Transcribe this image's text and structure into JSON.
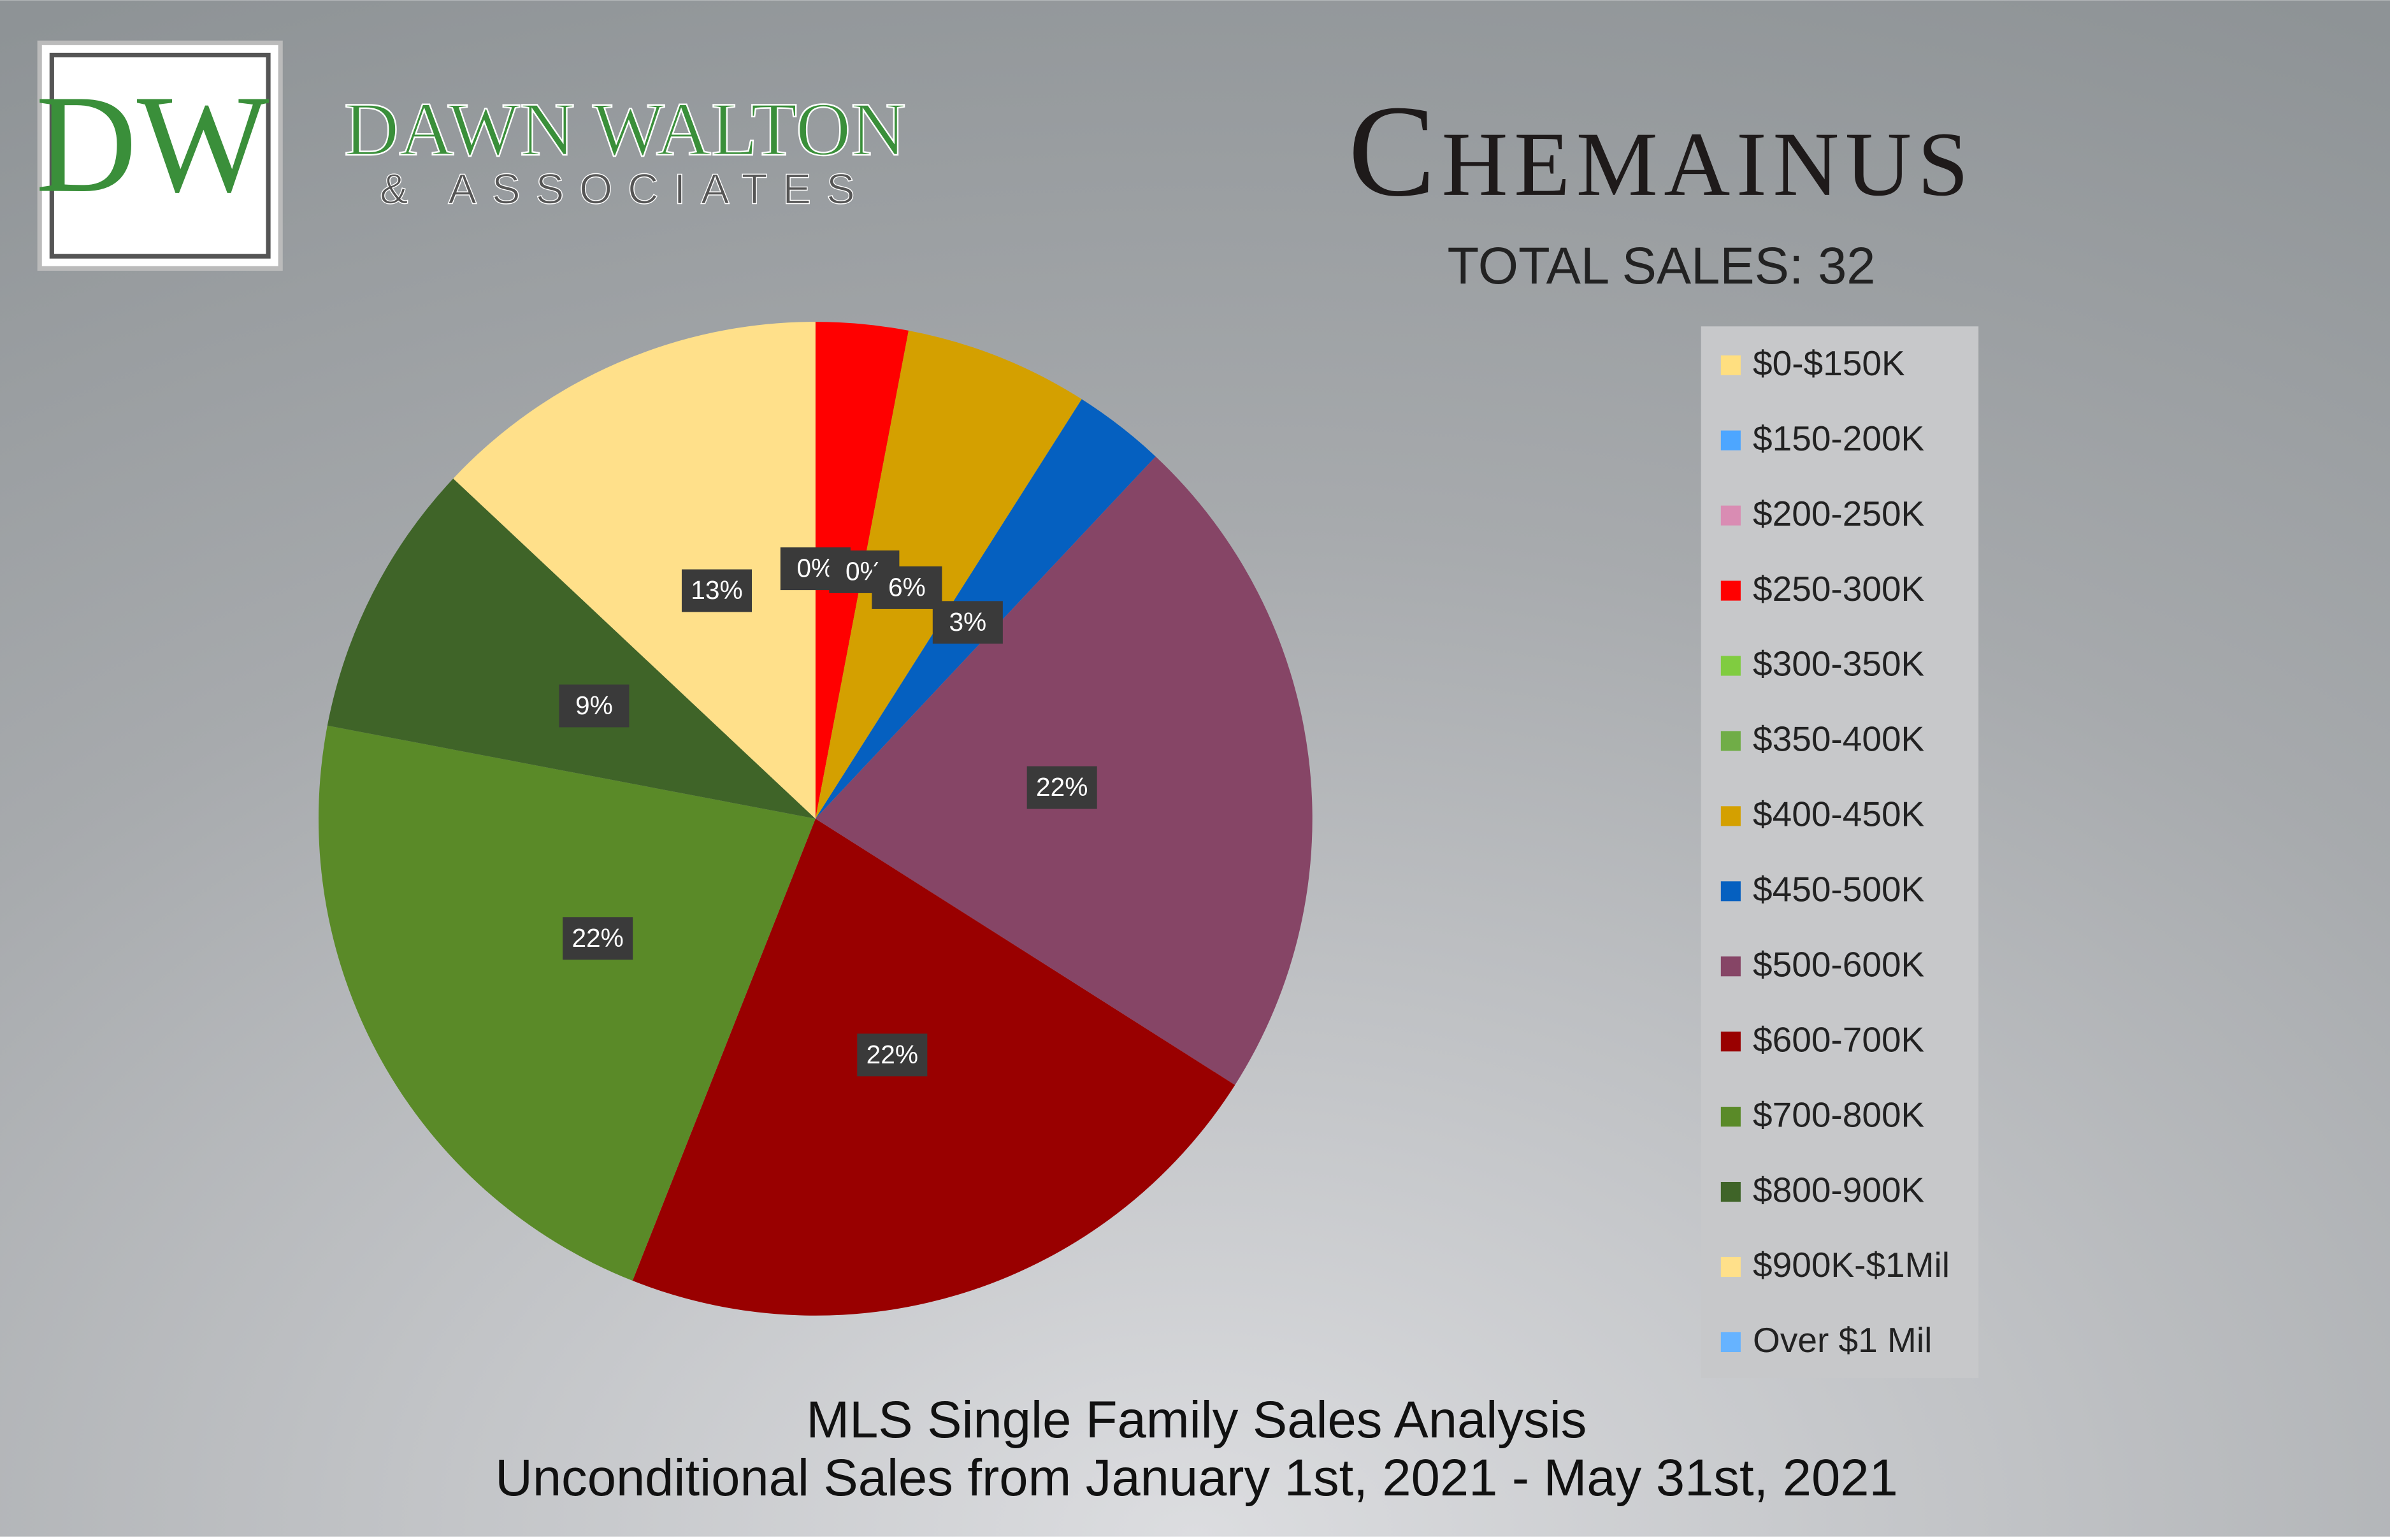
{
  "logo": {
    "initials": "DW",
    "name": "DAWN WALTON",
    "tagline": "& ASSOCIATES"
  },
  "chart_data": {
    "type": "pie",
    "title": "Chemainus",
    "subtitle": "TOTAL SALES: 32",
    "footer": [
      "MLS Single Family Sales Analysis",
      "Unconditional Sales from January 1st, 2021 - May 31st, 2021"
    ],
    "categories": [
      "$0-$150K",
      "$150-200K",
      "$200-250K",
      "$250-300K",
      "$300-350K",
      "$350-400K",
      "$400-450K",
      "$450-500K",
      "$500-600K",
      "$600-700K",
      "$700-800K",
      "$800-900K",
      "$900K-$1Mil",
      "Over $1 Mil"
    ],
    "values": [
      0,
      0,
      0,
      3,
      0,
      0,
      6,
      3,
      22,
      22,
      22,
      9,
      13,
      0
    ],
    "value_labels": [
      "0%",
      "0%",
      null,
      null,
      null,
      null,
      "6%",
      "3%",
      "22%",
      "22%",
      "22%",
      "9%",
      "13%",
      null
    ],
    "colors": [
      "#ffdf80",
      "#4da6ff",
      "#d98cb3",
      "#ff0000",
      "#80cc40",
      "#70ad47",
      "#d4a000",
      "#0560c0",
      "#864566",
      "#990000",
      "#5a8a28",
      "#3f6428",
      "#ffe08a",
      "#66b3ff"
    ],
    "legend": "right"
  }
}
